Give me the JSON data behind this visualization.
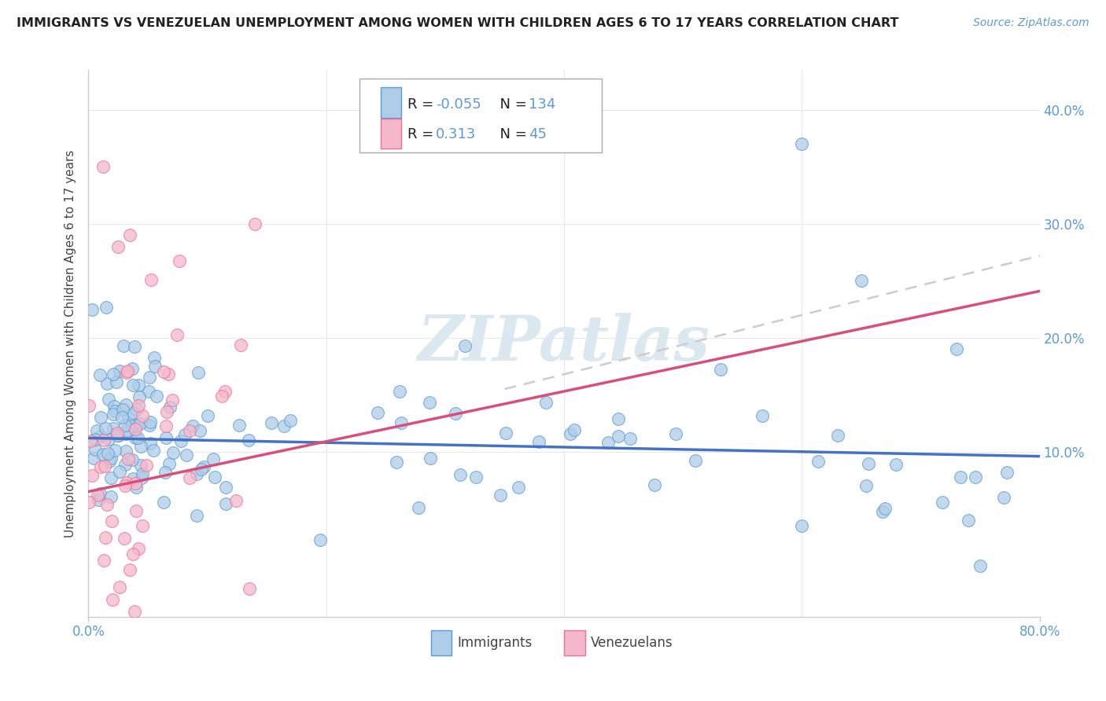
{
  "title": "IMMIGRANTS VS VENEZUELAN UNEMPLOYMENT AMONG WOMEN WITH CHILDREN AGES 6 TO 17 YEARS CORRELATION CHART",
  "source": "Source: ZipAtlas.com",
  "ylabel": "Unemployment Among Women with Children Ages 6 to 17 years",
  "xlim": [
    0.0,
    0.8
  ],
  "ylim": [
    -0.045,
    0.435
  ],
  "yticks": [
    0.1,
    0.2,
    0.3,
    0.4
  ],
  "xticks": [
    0.0,
    0.8
  ],
  "immigrant_R": -0.055,
  "immigrant_N": 134,
  "venezuelan_R": 0.313,
  "venezuelan_N": 45,
  "immigrant_fill_color": "#aecde8",
  "immigrant_edge_color": "#5b9bd5",
  "venezuelan_fill_color": "#f4b8cc",
  "venezuelan_edge_color": "#f07090",
  "immigrant_line_color": "#4472c4",
  "venezuelan_line_color": "#d94f7a",
  "dash_line_color": "#cccccc",
  "watermark": "ZIPatlas",
  "watermark_color": "#dce8f0",
  "legend_label_immigrants": "Immigrants",
  "legend_label_venezuelans": "Venezuelans",
  "tick_label_color": "#5b9bd5",
  "ylabel_color": "#444444",
  "title_color": "#222222",
  "source_color": "#5b9bd5",
  "grid_color": "#e8e8e8",
  "spine_color": "#cccccc"
}
